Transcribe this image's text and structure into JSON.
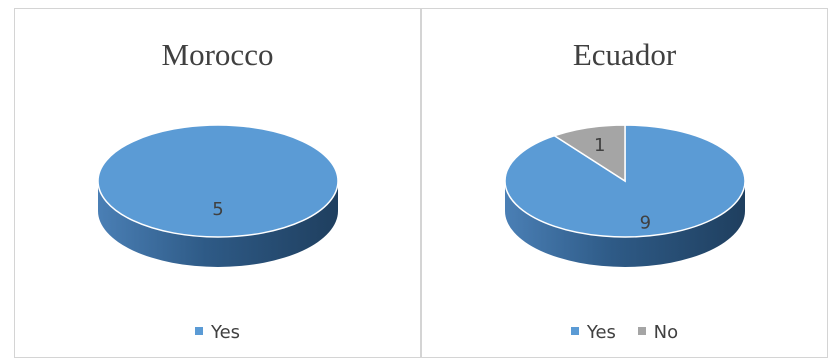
{
  "colors": {
    "yes": "#5b9bd5",
    "no": "#a5a5a5",
    "yes_side": "#2e5a86",
    "no_side": "#6b6b6b"
  },
  "chart_data": [
    {
      "type": "pie",
      "title": "Morocco",
      "categories": [
        "Yes"
      ],
      "values": [
        5
      ],
      "legend": {
        "position": "bottom",
        "entries": [
          "Yes"
        ]
      },
      "three_d": true
    },
    {
      "type": "pie",
      "title": "Ecuador",
      "categories": [
        "Yes",
        "No"
      ],
      "values": [
        9,
        1
      ],
      "legend": {
        "position": "bottom",
        "entries": [
          "Yes",
          "No"
        ]
      },
      "three_d": true
    }
  ]
}
